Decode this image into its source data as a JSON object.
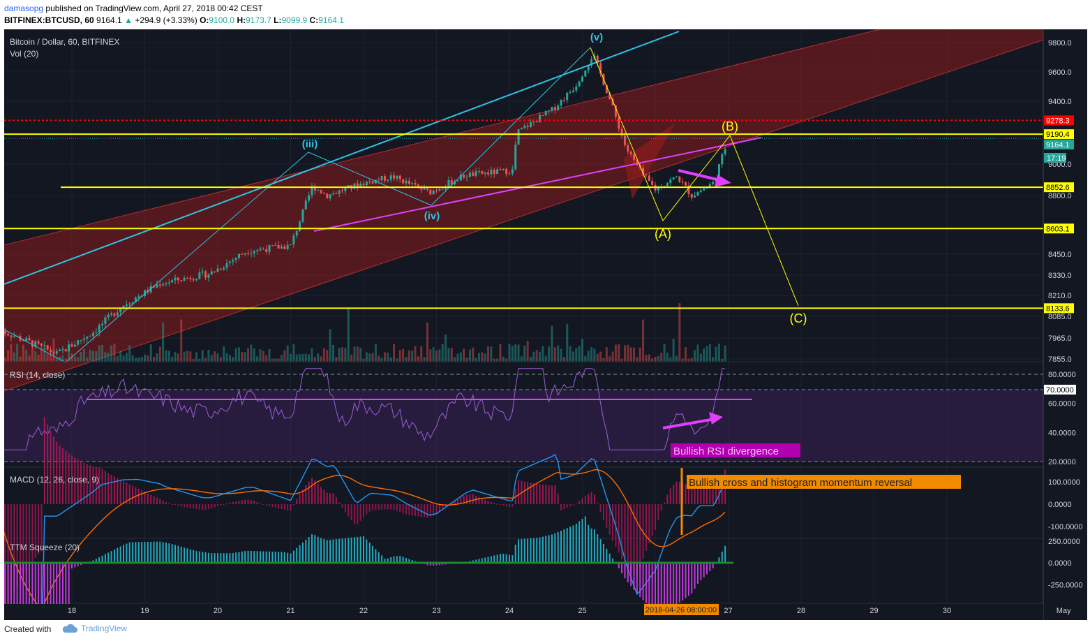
{
  "header": {
    "author": "damasopg",
    "published": "published on TradingView.com, April 27, 2018 00:42 CEST",
    "symbol": "BITFINEX:BTCUSD, 60",
    "last": "9164.1",
    "change": "+294.9 (+3.33%)",
    "o_label": "O:",
    "o": "9100.0",
    "h_label": "H:",
    "h": "9173.7",
    "l_label": "L:",
    "l": "9099.9",
    "c_label": "C:",
    "c": "9164.1"
  },
  "footer": {
    "created": "Created with",
    "brand": "TradingView"
  },
  "colors": {
    "background": "#131722",
    "up": "#26a69a",
    "down": "#ef5350",
    "yellow": "#ffff00",
    "cyan": "#2ec4e6",
    "magenta": "#e040fb",
    "red_level": "#ff0000",
    "orange": "#f08a00"
  },
  "chart_data": [
    {
      "type": "candlestick",
      "title": "Bitcoin / Dollar, 60, BITFINEX",
      "volume_label": "Vol (20)",
      "x_ticks": [
        "18",
        "19",
        "20",
        "21",
        "22",
        "23",
        "24",
        "25",
        "26",
        "27",
        "28",
        "29",
        "30",
        "May"
      ],
      "crosshair_label": "2018-04-26 08:00:00",
      "y_ticks": [
        "9800.0",
        "9600.0",
        "9400.0",
        "9000.0",
        "8800.0",
        "8450.0",
        "8330.0",
        "8210.0",
        "8085.0",
        "7965.0",
        "7855.0"
      ],
      "ylim": [
        7855,
        9800
      ],
      "levels": [
        {
          "value": 9278.3,
          "label": "9278.3",
          "color": "#ff0000",
          "style": "dotted"
        },
        {
          "value": 9190.4,
          "label": "9190.4",
          "color": "#ffff00",
          "style": "solid"
        },
        {
          "value": 8852.6,
          "label": "8852.6",
          "color": "#ffff00",
          "style": "solid"
        },
        {
          "value": 8603.1,
          "label": "8603.1",
          "color": "#ffff00",
          "style": "solid"
        },
        {
          "value": 8133.6,
          "label": "8133.6",
          "color": "#ffff00",
          "style": "solid"
        }
      ],
      "last_price_label": "9164.1",
      "countdown_label": "17:19",
      "wave_labels": [
        "(v)",
        "(iii)",
        "(iv)",
        "(A)",
        "(B)",
        "(C)"
      ],
      "price_path_approx": [
        {
          "x": 17.0,
          "y": 8010
        },
        {
          "x": 17.8,
          "y": 7880
        },
        {
          "x": 18.3,
          "y": 8000
        },
        {
          "x": 18.7,
          "y": 8150
        },
        {
          "x": 19.2,
          "y": 8280
        },
        {
          "x": 19.9,
          "y": 8340
        },
        {
          "x": 20.4,
          "y": 8470
        },
        {
          "x": 21.0,
          "y": 8500
        },
        {
          "x": 21.3,
          "y": 8860
        },
        {
          "x": 21.5,
          "y": 8800
        },
        {
          "x": 22.0,
          "y": 8880
        },
        {
          "x": 22.4,
          "y": 8920
        },
        {
          "x": 22.9,
          "y": 8820
        },
        {
          "x": 23.4,
          "y": 8930
        },
        {
          "x": 24.05,
          "y": 8960
        },
        {
          "x": 24.1,
          "y": 9200
        },
        {
          "x": 24.6,
          "y": 9350
        },
        {
          "x": 24.9,
          "y": 9500
        },
        {
          "x": 25.15,
          "y": 9720
        },
        {
          "x": 25.4,
          "y": 9380
        },
        {
          "x": 25.6,
          "y": 9100
        },
        {
          "x": 25.8,
          "y": 8950
        },
        {
          "x": 26.0,
          "y": 8840
        },
        {
          "x": 26.3,
          "y": 8920
        },
        {
          "x": 26.5,
          "y": 8800
        },
        {
          "x": 26.8,
          "y": 8880
        },
        {
          "x": 27.0,
          "y": 9164
        }
      ]
    },
    {
      "type": "line",
      "title": "RSI (14, close)",
      "y_ticks": [
        "80.0000",
        "70.0000",
        "60.0000",
        "40.0000",
        "20.0000"
      ],
      "ylim": [
        20,
        80
      ],
      "current_label": "70.0000",
      "annotation": "Bullish RSI divergence"
    },
    {
      "type": "line",
      "title": "MACD (12, 26, close, 9)",
      "y_ticks": [
        "100.0000",
        "0.0000",
        "-100.0000"
      ],
      "annotation": "Bullish cross and histogram momentum reversal"
    },
    {
      "type": "bar",
      "title": "TTM Squeeze (20)",
      "y_ticks": [
        "250.0000",
        "0.0000",
        "-250.0000"
      ]
    }
  ]
}
